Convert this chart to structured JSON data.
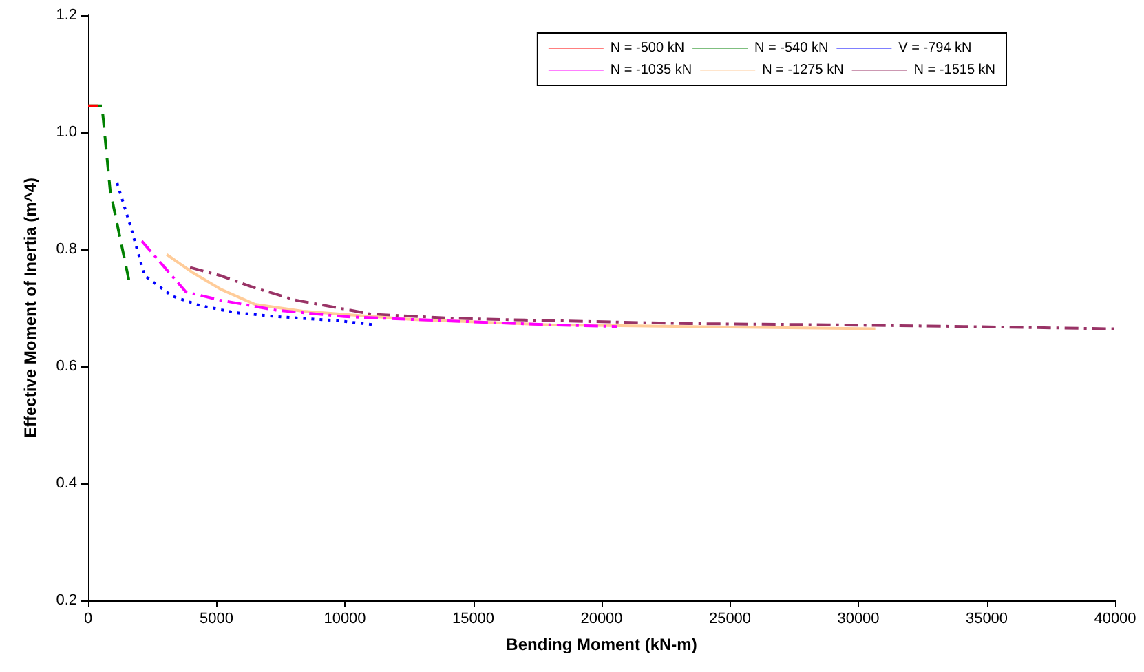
{
  "chart_data": {
    "type": "line",
    "xlabel": "Bending Moment (kN-m)",
    "ylabel": "Effective Moment of Inertia (m^4)",
    "xlim": [
      0,
      40000
    ],
    "xticks": [
      0,
      5000,
      10000,
      15000,
      20000,
      25000,
      30000,
      35000,
      40000
    ],
    "ylim": [
      0.2,
      1.2
    ],
    "yticks": [
      0.2,
      0.4,
      0.6,
      0.8,
      {
        "value": 1,
        "label": "1.0"
      },
      1.2
    ],
    "grid": false,
    "legend": "top right",
    "marker": "none",
    "series": [
      {
        "name": "N = -500 kN",
        "color": "#ff0000",
        "line_style": "solid",
        "x": [
          0,
          400
        ],
        "values": [
          1.045,
          1.045
        ]
      },
      {
        "name": "N = -540 kN",
        "color": "#008000",
        "line_style": "dashed",
        "x": [
          0,
          540,
          860,
          1600
        ],
        "values": [
          1.045,
          1.045,
          0.9,
          0.745
        ]
      },
      {
        "name": "V = -794 kN",
        "color": "#0000ff",
        "line_style": "dotted",
        "x": [
          1130,
          1660,
          2200,
          3270,
          4350,
          5690,
          7300,
          9710,
          11150
        ],
        "values": [
          0.913,
          0.838,
          0.755,
          0.72,
          0.704,
          0.692,
          0.685,
          0.678,
          0.671
        ]
      },
      {
        "name": "N = -1035 kN",
        "color": "#ff00ff",
        "line_style": "dashdot",
        "x": [
          2090,
          3810,
          5150,
          7300,
          9970,
          12650,
          18000,
          20600
        ],
        "values": [
          0.814,
          0.727,
          0.713,
          0.696,
          0.685,
          0.68,
          0.671,
          0.668
        ]
      },
      {
        "name": "N = -1275 kN",
        "color": "#ffcc99",
        "line_style": "solid",
        "x": [
          3060,
          4080,
          5150,
          6490,
          8360,
          12650,
          18000,
          23400,
          30660
        ],
        "values": [
          0.791,
          0.76,
          0.732,
          0.706,
          0.694,
          0.68,
          0.671,
          0.668,
          0.664
        ]
      },
      {
        "name": "N = -1515 kN",
        "color": "#993366",
        "line_style": "dashdot",
        "x": [
          3970,
          5150,
          6490,
          8100,
          11050,
          14260,
          18000,
          23400,
          28800,
          34100,
          40000
        ],
        "values": [
          0.769,
          0.755,
          0.734,
          0.713,
          0.689,
          0.682,
          0.678,
          0.673,
          0.671,
          0.668,
          0.664
        ]
      }
    ]
  }
}
